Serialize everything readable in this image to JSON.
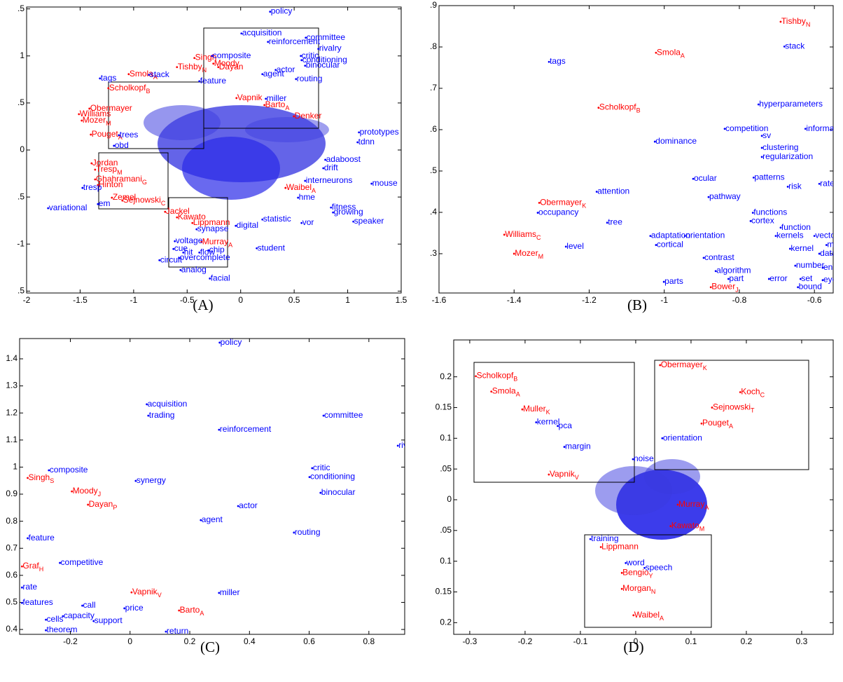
{
  "chart_data": [
    {
      "type": "scatter",
      "caption": "(A)",
      "xlim": [
        -2,
        1.5
      ],
      "ylim": [
        -1.52,
        1.52
      ],
      "xticks": [
        -2,
        -1.5,
        -1,
        -0.5,
        0,
        0.5,
        1,
        1.5
      ],
      "yticks": [
        {
          "value": 1.5,
          "label": ".5"
        },
        1,
        {
          "value": 0.5,
          "label": ".5"
        },
        0,
        {
          "value": -0.5,
          "label": ".5"
        },
        -1,
        {
          "value": -1.5,
          "label": ".5"
        }
      ],
      "series": [
        {
          "color": "#ff0000",
          "labels": [
            "Singh",
            "Moody",
            "Dayan",
            "Tishby",
            "Smola",
            "Scholkopf",
            "Vapnik",
            "Barto",
            "Denker",
            "Obermayer",
            "Williams",
            "Mozer",
            "Pouget",
            "Jordan",
            "Tresp",
            "Ghahramani",
            "Hinton",
            "Waibel",
            "Zemel",
            "Sejnowski",
            "Jackel",
            "Kawato",
            "Lippmann",
            "Murray"
          ],
          "subscripts": [
            null,
            null,
            null,
            "N",
            "A",
            "B",
            null,
            "A",
            null,
            null,
            null,
            "M",
            "A",
            null,
            "M",
            "G",
            null,
            "A",
            null,
            "C",
            null,
            null,
            null,
            "A"
          ],
          "x": [
            -0.432,
            -0.255,
            -0.209,
            -0.595,
            -1.046,
            -1.236,
            -0.039,
            0.222,
            0.497,
            -1.413,
            -1.511,
            -1.485,
            -1.4,
            -1.393,
            -1.36,
            -1.36,
            -1.334,
            0.419,
            -1.203,
            -1.105,
            -0.706,
            -0.595,
            -0.451,
            -0.366
          ],
          "y": [
            0.978,
            0.918,
            0.881,
            0.881,
            0.806,
            0.657,
            0.552,
            0.478,
            0.358,
            0.44,
            0.381,
            0.313,
            0.164,
            -0.142,
            -0.209,
            -0.313,
            -0.373,
            -0.403,
            -0.507,
            -0.537,
            -0.657,
            -0.716,
            -0.776,
            -0.978
          ]
        },
        {
          "color": "#0000ff",
          "labels": [
            "policy",
            "acquisition",
            "committee",
            "reinforcement",
            "rivalry",
            "critic",
            "conditioning",
            "binocular",
            "composite",
            "actor",
            "agent",
            "tags",
            "stack",
            "routing",
            "feature",
            "miller",
            "prototypes",
            "trees",
            "tdnn",
            "obd",
            "adaboost",
            "drift",
            "tresp",
            "interneurons",
            "mouse",
            "em",
            "hme",
            "variational",
            "fitness",
            "growing",
            "speaker",
            "statistic",
            "vor",
            "digital",
            "synapse",
            "student",
            "voltage",
            "cue",
            "chip",
            "hit",
            "circuit",
            "flow",
            "overcomplete",
            "analog",
            "facial"
          ],
          "x": [
            0.275,
            0.007,
            0.608,
            0.255,
            0.726,
            0.562,
            0.569,
            0.602,
            -0.268,
            0.327,
            0.203,
            -1.315,
            -0.857,
            0.517,
            -0.386,
            0.235,
            1.105,
            -1.138,
            1.092,
            -1.184,
            0.791,
            0.772,
            -1.478,
            0.602,
            1.223,
            -1.334,
            0.536,
            -1.799,
            0.844,
            0.863,
            1.053,
            0.203,
            0.569,
            -0.046,
            -0.412,
            0.15,
            -0.615,
            -0.628,
            -0.301,
            -0.536,
            -0.759,
            -0.386,
            -0.576,
            -0.562,
            -0.288
          ],
          "y": [
            1.47,
            1.239,
            1.194,
            1.149,
            1.075,
            1.0,
            0.955,
            0.896,
            1.0,
            0.851,
            0.806,
            0.761,
            0.799,
            0.754,
            0.731,
            0.545,
            0.187,
            0.157,
            0.082,
            0.045,
            -0.104,
            -0.194,
            -0.403,
            -0.328,
            -0.358,
            -0.575,
            -0.507,
            -0.619,
            -0.612,
            -0.664,
            -0.761,
            -0.739,
            -0.776,
            -0.806,
            -0.843,
            -1.045,
            -0.97,
            -1.052,
            -1.067,
            -1.09,
            -1.172,
            -1.09,
            -1.149,
            -1.276,
            -1.366
          ]
        }
      ]
    },
    {
      "type": "scatter",
      "caption": "(B)",
      "xlim": [
        -1.6,
        -0.55
      ],
      "ylim": [
        0.205,
        0.9
      ],
      "xticks": [
        -1.6,
        -1.4,
        -1.2,
        -1,
        -0.8,
        -0.6
      ],
      "yticks": [
        {
          "value": 0.9,
          "label": ".9"
        },
        {
          "value": 0.8,
          "label": ".8"
        },
        {
          "value": 0.7,
          "label": ".7"
        },
        {
          "value": 0.6,
          "label": ".6"
        },
        {
          "value": 0.5,
          "label": ".5"
        },
        {
          "value": 0.4,
          "label": ".4"
        },
        {
          "value": 0.3,
          "label": ".3"
        }
      ],
      "series": [
        {
          "color": "#ff0000",
          "labels": [
            "Tishby",
            "Smola",
            "Scholkopf",
            "Obermayer",
            "Williams",
            "Mozer",
            "Bower"
          ],
          "subscripts": [
            "N",
            "A",
            "B",
            "K",
            "C",
            "M",
            "J"
          ],
          "x": [
            -0.69,
            -1.022,
            -1.175,
            -1.333,
            -1.426,
            -1.4,
            -0.876
          ],
          "y": [
            0.861,
            0.786,
            0.653,
            0.423,
            0.346,
            0.3,
            0.219
          ]
        },
        {
          "color": "#0000ff",
          "labels": [
            "stack",
            "tags",
            "hyperparameters",
            "competition",
            "information",
            "dominance",
            "sv",
            "clustering",
            "regularization",
            "ocular",
            "patterns",
            "risk",
            "rate",
            "attention",
            "pathway",
            "occupancy",
            "functions",
            "tree",
            "cortex",
            "function",
            "adaptation",
            "orientation",
            "kernels",
            "vector",
            "level",
            "cortical",
            "markov",
            "kernel",
            "data",
            "contrast",
            "number",
            "entropy",
            "algorithm",
            "parts",
            "part",
            "error",
            "set",
            "eye",
            "bound"
          ],
          "x": [
            -0.68,
            -1.307,
            -0.749,
            -0.839,
            -0.624,
            -1.025,
            -0.74,
            -0.74,
            -0.74,
            -0.923,
            -0.762,
            -0.671,
            -0.587,
            -1.18,
            -0.882,
            -1.337,
            -0.764,
            -1.152,
            -0.77,
            -0.69,
            -1.037,
            -0.945,
            -0.703,
            -0.6,
            -1.262,
            -1.022,
            -0.568,
            -0.665,
            -0.587,
            -0.895,
            -0.651,
            -0.578,
            -0.863,
            -1.001,
            -0.829,
            -0.721,
            -0.637,
            -0.578,
            -0.644
          ],
          "y": [
            0.801,
            0.764,
            0.661,
            0.602,
            0.602,
            0.571,
            0.585,
            0.556,
            0.534,
            0.481,
            0.484,
            0.462,
            0.469,
            0.45,
            0.437,
            0.399,
            0.399,
            0.375,
            0.379,
            0.363,
            0.343,
            0.343,
            0.343,
            0.343,
            0.317,
            0.321,
            0.321,
            0.312,
            0.3,
            0.29,
            0.271,
            0.266,
            0.258,
            0.232,
            0.239,
            0.239,
            0.239,
            0.236,
            0.219
          ]
        }
      ]
    },
    {
      "type": "scatter",
      "caption": "(C)",
      "xlim": [
        -0.37,
        0.92
      ],
      "ylim": [
        0.382,
        1.475
      ],
      "xticks": [
        -0.2,
        0,
        0.2,
        0.4,
        0.6,
        0.8
      ],
      "yticks": [
        1.4,
        1.3,
        1.2,
        1.1,
        1,
        0.9,
        0.8,
        0.7,
        0.6,
        0.5,
        0.4
      ],
      "series": [
        {
          "color": "#ff0000",
          "labels": [
            "Singh",
            "Moody",
            "Dayan",
            "Graf",
            "Vapnik",
            "Barto"
          ],
          "subscripts": [
            "S",
            "J",
            "P",
            "H",
            "V",
            "A"
          ],
          "x": [
            -0.343,
            -0.195,
            -0.141,
            -0.362,
            0.005,
            0.164
          ],
          "y": [
            0.96,
            0.91,
            0.861,
            0.633,
            0.537,
            0.47
          ]
        },
        {
          "color": "#0000ff",
          "labels": [
            "policy",
            "acquisition",
            "trading",
            "reinforcement",
            "committee",
            "rivalry",
            "composite",
            "critic",
            "conditioning",
            "synergy",
            "binocular",
            "actor",
            "agent",
            "routing",
            "feature",
            "competitive",
            "rate",
            "miller",
            "features",
            "call",
            "price",
            "capacity",
            "cells",
            "support",
            "theorem",
            "return"
          ],
          "x": [
            0.3,
            0.056,
            0.061,
            0.298,
            0.648,
            0.897,
            -0.272,
            0.61,
            0.601,
            0.019,
            0.638,
            0.362,
            0.237,
            0.549,
            -0.343,
            -0.235,
            -0.362,
            0.298,
            -0.362,
            -0.16,
            -0.019,
            -0.225,
            -0.282,
            -0.122,
            -0.282,
            0.12
          ],
          "y": [
            1.46,
            1.232,
            1.19,
            1.138,
            1.19,
            1.079,
            0.988,
            0.996,
            0.963,
            0.949,
            0.905,
            0.856,
            0.804,
            0.758,
            0.737,
            0.646,
            0.555,
            0.535,
            0.498,
            0.488,
            0.478,
            0.449,
            0.436,
            0.431,
            0.397,
            0.392
          ]
        }
      ]
    },
    {
      "type": "scatter",
      "caption": "(D)",
      "xlim": [
        -0.329,
        0.357
      ],
      "ylim": [
        -0.219,
        0.26
      ],
      "xticks": [
        -0.3,
        -0.2,
        -0.1,
        0,
        0.1,
        0.2,
        0.3
      ],
      "yticks": [
        0.2,
        0.15,
        0.1,
        {
          "value": 0.05,
          "label": ".05"
        },
        0,
        {
          "value": -0.05,
          "label": ".05"
        },
        {
          "value": -0.1,
          "label": "0.1"
        },
        {
          "value": -0.15,
          "label": "0.15"
        },
        {
          "value": -0.2,
          "label": "0.2"
        }
      ],
      "series": [
        {
          "color": "#ff0000",
          "labels": [
            "Obermayer",
            "Scholkopf",
            "Koch",
            "Smola",
            "Muller",
            "Sejnowski",
            "Pouget",
            "Vapnik",
            "Murray",
            "Kawato",
            "Lippmann",
            "Bengio",
            "Morgan",
            "Waibel"
          ],
          "subscripts": [
            "K",
            "B",
            "C",
            "A",
            "K",
            "T",
            "A",
            "V",
            "A",
            "M",
            null,
            "Y",
            "N",
            "A"
          ],
          "x": [
            0.044,
            -0.289,
            0.189,
            -0.261,
            -0.205,
            0.138,
            0.119,
            -0.157,
            0.076,
            0.063,
            -0.063,
            -0.025,
            -0.025,
            -0.004
          ],
          "y": [
            0.219,
            0.201,
            0.175,
            0.176,
            0.147,
            0.15,
            0.124,
            0.041,
            -0.008,
            -0.043,
            -0.077,
            -0.119,
            -0.145,
            -0.188
          ]
        },
        {
          "color": "#0000ff",
          "labels": [
            "kernel",
            "pca",
            "orientation",
            "margin",
            "noise",
            "training",
            "word",
            "speech"
          ],
          "x": [
            -0.18,
            -0.141,
            0.048,
            -0.129,
            -0.005,
            -0.082,
            -0.018,
            0.016
          ],
          "y": [
            0.126,
            0.12,
            0.1,
            0.086,
            0.066,
            -0.064,
            -0.103,
            -0.111
          ]
        }
      ]
    }
  ]
}
